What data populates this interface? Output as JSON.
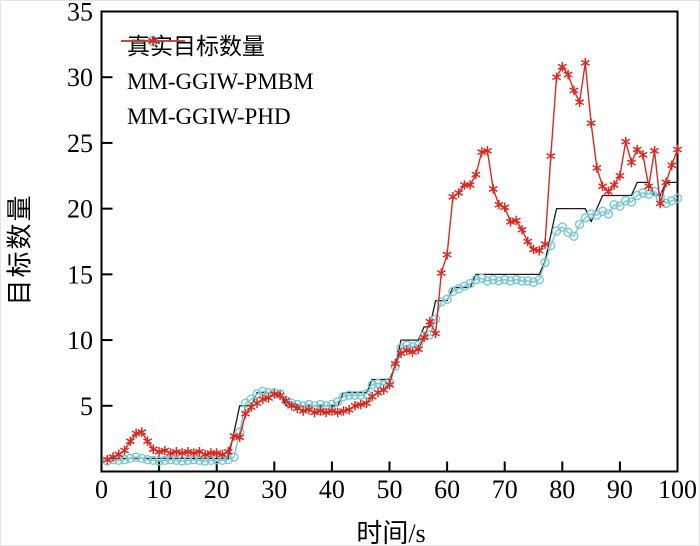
{
  "figure": {
    "background": "#ffffff",
    "axis_color": "#000000"
  },
  "chart_data": {
    "type": "line",
    "title": "",
    "xlabel": "时间/s",
    "ylabel": "目标数量",
    "xlim": [
      0,
      100
    ],
    "ylim": [
      0,
      35
    ],
    "xticks": [
      0,
      10,
      20,
      30,
      40,
      50,
      60,
      70,
      80,
      90,
      100
    ],
    "yticks": [
      5,
      10,
      15,
      20,
      25,
      30,
      35
    ],
    "grid": false,
    "legend_position": "top-left",
    "x_start": 1,
    "x_step": 1,
    "series": [
      {
        "name": "真实目标数量",
        "color": "#1a1a1a",
        "marker": "none",
        "values": [
          1,
          1,
          1,
          1,
          1,
          1,
          1,
          1,
          1,
          1,
          1,
          1,
          1,
          1,
          1,
          1,
          1,
          1,
          1,
          1,
          1,
          1,
          3,
          5,
          5,
          5,
          6,
          6,
          6,
          6,
          6,
          5,
          5,
          5,
          5,
          5,
          5,
          5,
          5,
          5,
          5,
          6,
          6,
          6,
          6,
          6,
          7,
          7,
          7,
          7,
          8,
          10,
          10,
          10,
          10,
          11,
          11,
          13,
          13,
          13,
          14,
          14,
          14,
          14,
          15,
          15,
          15,
          15,
          15,
          15,
          15,
          15,
          15,
          15,
          15,
          15,
          16,
          18,
          20,
          20,
          20,
          20,
          20,
          20,
          19,
          20,
          21,
          21,
          21,
          21,
          21,
          21,
          22,
          22,
          22,
          21,
          21,
          22,
          22,
          22
        ]
      },
      {
        "name": "MM-GGIW-PMBM",
        "color": "#79c7d4",
        "marker": "circle",
        "values": [
          0.8,
          0.9,
          0.85,
          0.9,
          1.0,
          1.1,
          1.0,
          0.9,
          0.85,
          0.8,
          0.85,
          0.9,
          0.85,
          0.8,
          0.85,
          0.9,
          0.85,
          0.8,
          0.85,
          0.9,
          0.85,
          0.9,
          1.1,
          3.0,
          5.2,
          5.5,
          5.9,
          6.1,
          6.0,
          6.0,
          5.9,
          5.4,
          5.2,
          5.1,
          5.0,
          5.1,
          5.0,
          5.1,
          5.0,
          5.1,
          5.3,
          5.7,
          5.8,
          5.8,
          5.8,
          5.9,
          6.6,
          6.7,
          6.6,
          6.8,
          8.0,
          9.4,
          9.6,
          9.5,
          9.6,
          10.3,
          10.4,
          11.6,
          12.9,
          13.1,
          13.7,
          13.9,
          14.1,
          14.3,
          14.6,
          14.7,
          14.5,
          14.6,
          14.5,
          14.6,
          14.5,
          14.6,
          14.5,
          14.5,
          14.4,
          14.6,
          15.9,
          17.2,
          18.3,
          18.6,
          18.2,
          17.9,
          18.8,
          19.3,
          19.6,
          19.5,
          19.8,
          19.6,
          20.3,
          20.2,
          20.6,
          20.5,
          21.0,
          21.2,
          21.1,
          21.3,
          20.9,
          20.4,
          20.6,
          20.8
        ]
      },
      {
        "name": "MM-GGIW-PHD",
        "color": "#d92a21",
        "marker": "asterisk",
        "values": [
          0.9,
          1.1,
          1.3,
          1.6,
          2.3,
          2.9,
          3.0,
          2.3,
          1.7,
          1.5,
          1.6,
          1.4,
          1.5,
          1.4,
          1.5,
          1.4,
          1.5,
          1.3,
          1.4,
          1.4,
          1.3,
          1.5,
          2.7,
          2.6,
          4.4,
          4.9,
          5.2,
          5.5,
          5.6,
          5.9,
          5.8,
          5.4,
          5.0,
          4.8,
          4.6,
          4.7,
          4.5,
          4.6,
          4.5,
          4.6,
          4.5,
          4.6,
          4.7,
          5.0,
          5.1,
          5.2,
          5.7,
          6.0,
          6.2,
          6.6,
          8.2,
          9.0,
          9.2,
          9.1,
          9.3,
          10.2,
          11.4,
          10.5,
          15.1,
          16.5,
          20.9,
          21.2,
          21.8,
          21.8,
          22.6,
          24.3,
          24.4,
          21.5,
          20.3,
          20.1,
          19.0,
          19.1,
          18.4,
          17.5,
          16.9,
          16.8,
          17.3,
          24.0,
          30.0,
          30.8,
          30.2,
          29.0,
          28.1,
          31.1,
          26.5,
          23.1,
          21.7,
          21.3,
          21.8,
          22.5,
          25.1,
          23.5,
          24.5,
          24.1,
          21.7,
          24.4,
          20.4,
          22.0,
          23.3,
          24.5
        ]
      }
    ]
  }
}
